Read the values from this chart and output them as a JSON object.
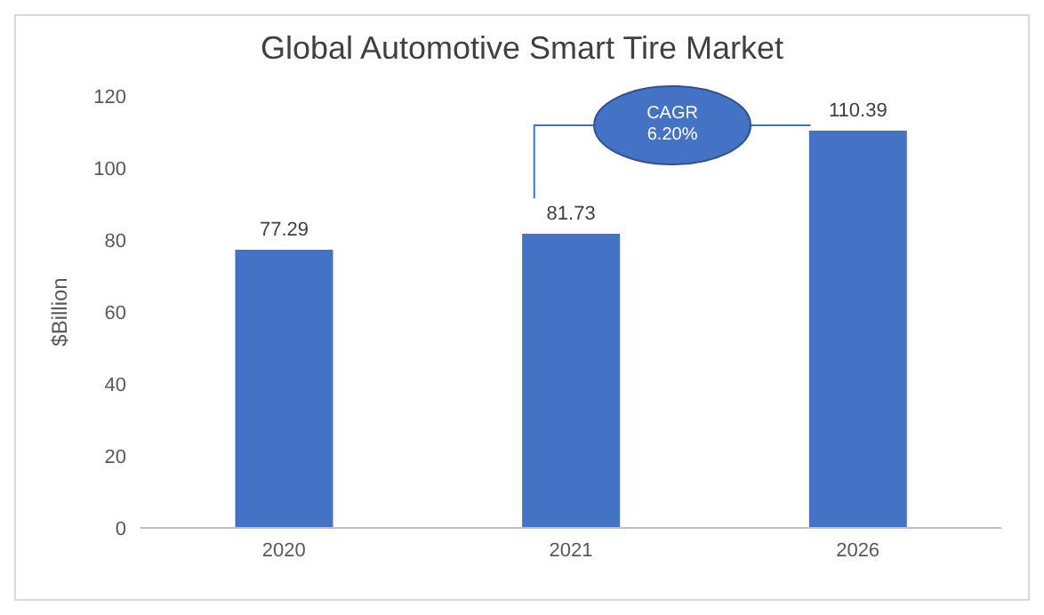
{
  "chart_data": {
    "type": "bar",
    "title": "Global Automotive Smart Tire Market",
    "ylabel": "$Billion",
    "categories": [
      "2020",
      "2021",
      "2026"
    ],
    "values": [
      77.29,
      81.73,
      110.39
    ],
    "color": "#4472c4",
    "ylim": [
      0,
      120
    ],
    "yticks": [
      0,
      20,
      40,
      60,
      80,
      100,
      120
    ],
    "grid": false,
    "data_labels": true,
    "annotations": [
      "CAGR\n6.20%"
    ]
  }
}
